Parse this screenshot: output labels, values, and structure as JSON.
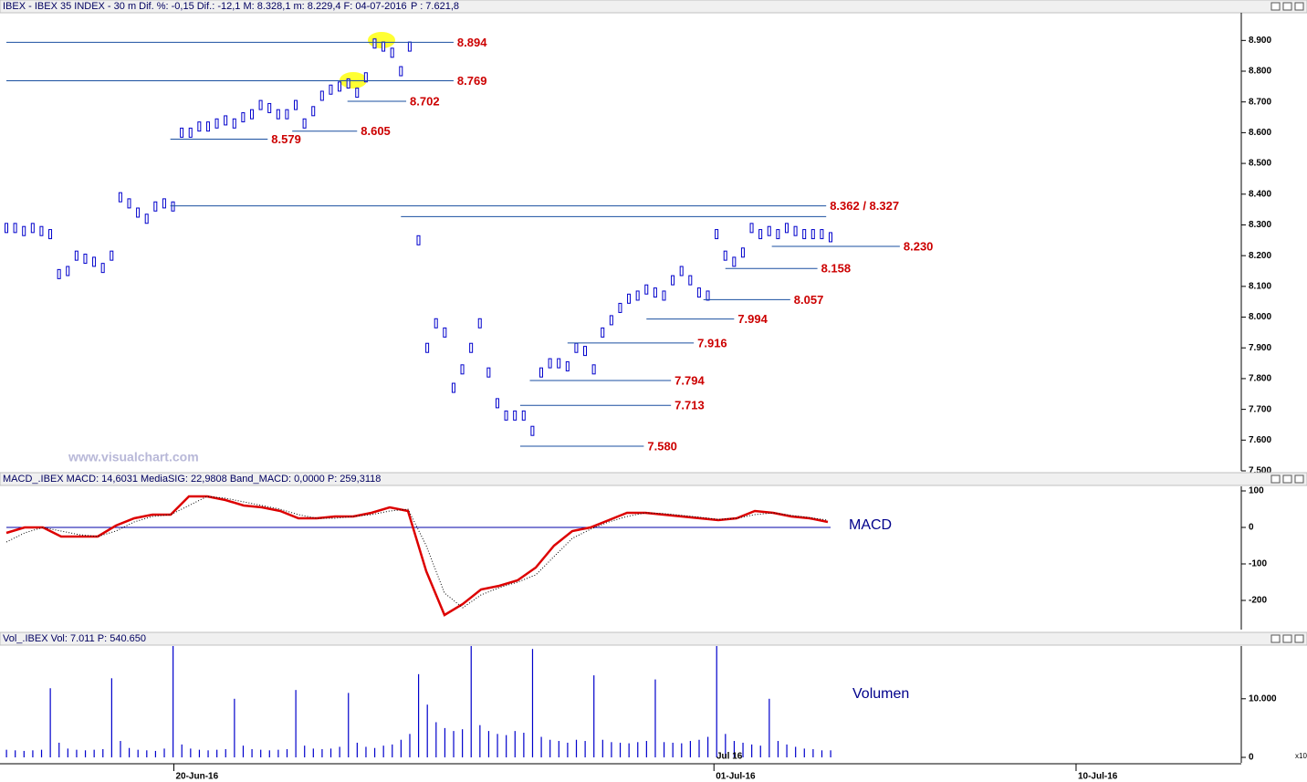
{
  "chart_data": [
    {
      "type": "price",
      "title": "IBEX - IBEX 35 INDEX -  30 m  Dif. %: -0,15  Dif.: -12,1  M: 8.328,1  m: 8.229,4  F: 04-07-2016",
      "last": "P : 7.621,8",
      "watermark": "www.visualchart.com",
      "color": "#0000cc",
      "values": [
        8.29,
        8.29,
        8.28,
        8.29,
        8.28,
        8.27,
        8.14,
        8.15,
        8.2,
        8.19,
        8.18,
        8.16,
        8.2,
        8.39,
        8.37,
        8.34,
        8.32,
        8.36,
        8.37,
        8.36,
        8.6,
        8.6,
        8.62,
        8.62,
        8.63,
        8.64,
        8.63,
        8.65,
        8.66,
        8.69,
        8.68,
        8.66,
        8.66,
        8.69,
        8.63,
        8.67,
        8.72,
        8.74,
        8.75,
        8.76,
        8.73,
        8.78,
        8.89,
        8.88,
        8.86,
        8.8,
        8.88,
        8.25,
        7.9,
        7.98,
        7.95,
        7.77,
        7.83,
        7.9,
        7.98,
        7.82,
        7.72,
        7.68,
        7.68,
        7.68,
        7.63,
        7.82,
        7.85,
        7.85,
        7.84,
        7.9,
        7.89,
        7.83,
        7.95,
        7.99,
        8.03,
        8.06,
        8.07,
        8.09,
        8.08,
        8.07,
        8.12,
        8.15,
        8.12,
        8.08,
        8.07,
        8.27,
        8.2,
        8.18,
        8.21,
        8.29,
        8.27,
        8.28,
        8.27,
        8.29,
        8.28,
        8.27,
        8.27,
        8.27,
        8.26
      ],
      "xlim": [
        0,
        94
      ],
      "xticks": [
        {
          "value": 19.1,
          "label": "20-Jun-16"
        },
        {
          "value": 80.7,
          "label": "01-Jul-16"
        },
        {
          "value": 122,
          "label": "10-Jul-16"
        }
      ],
      "ylim": [
        7.5,
        8.99
      ],
      "yticks": [
        {
          "value": 7.5,
          "label": "7.500"
        },
        {
          "value": 7.6,
          "label": "7.600"
        },
        {
          "value": 7.7,
          "label": "7.700"
        },
        {
          "value": 7.8,
          "label": "7.800"
        },
        {
          "value": 7.9,
          "label": "7.900"
        },
        {
          "value": 8.0,
          "label": "8.000"
        },
        {
          "value": 8.1,
          "label": "8.100"
        },
        {
          "value": 8.2,
          "label": "8.200"
        },
        {
          "value": 8.3,
          "label": "8.300"
        },
        {
          "value": 8.4,
          "label": "8.400"
        },
        {
          "value": 8.5,
          "label": "8.500"
        },
        {
          "value": 8.6,
          "label": "8.600"
        },
        {
          "value": 8.7,
          "label": "8.700"
        },
        {
          "value": 8.8,
          "label": "8.800"
        },
        {
          "value": 8.9,
          "label": "8.900"
        }
      ],
      "levels": [
        {
          "value": 8.894,
          "label": "8.894",
          "from": 0,
          "to": 51
        },
        {
          "value": 8.769,
          "label": "8.769",
          "from": 0,
          "to": 51
        },
        {
          "value": 8.702,
          "label": "8.702",
          "from": 38.9,
          "to": 45.6
        },
        {
          "value": 8.605,
          "label": "8.605",
          "from": 32.6,
          "to": 40
        },
        {
          "value": 8.579,
          "label": "8.579",
          "from": 18.7,
          "to": 29.8
        },
        {
          "value": 8.362,
          "label": "8.362 / 8.327",
          "from": 18.7,
          "to": 93.5
        },
        {
          "value": 8.327,
          "from": 45,
          "to": 93.5
        },
        {
          "value": 8.23,
          "label": "8.230",
          "from": 87.3,
          "to": 101.9
        },
        {
          "value": 8.158,
          "label": "8.158",
          "from": 82,
          "to": 92.5
        },
        {
          "value": 8.057,
          "label": "8.057",
          "from": 79.5,
          "to": 89.4
        },
        {
          "value": 7.994,
          "label": "7.994",
          "from": 73,
          "to": 83
        },
        {
          "value": 7.916,
          "label": "7.916",
          "from": 64,
          "to": 78.4
        },
        {
          "value": 7.794,
          "label": "7.794",
          "from": 59.7,
          "to": 75.8
        },
        {
          "value": 7.713,
          "label": "7.713",
          "from": 58.6,
          "to": 75.8
        },
        {
          "value": 7.58,
          "label": "7.580",
          "from": 58.6,
          "to": 72.7
        }
      ]
    },
    {
      "type": "line",
      "title": "MACD_.IBEX MACD: 14,6031  MediaSIG: 22,9808  Band_MACD: 0,0000  P: 259,3118",
      "label": "MACD",
      "xlim": [
        0,
        45
      ],
      "zero_line": true,
      "series": [
        {
          "color": "#dd0000",
          "style": "solid",
          "values": [
            -15,
            0,
            0,
            -25,
            -25,
            -25,
            5,
            25,
            35,
            35,
            85,
            85,
            75,
            60,
            55,
            45,
            25,
            25,
            30,
            30,
            40,
            55,
            45,
            -120,
            -240,
            -210,
            -170,
            -160,
            -145,
            -110,
            -50,
            -10,
            0,
            20,
            40,
            40,
            35,
            30,
            25,
            20,
            25,
            45,
            40,
            30,
            25,
            15
          ]
        },
        {
          "color": "#000000",
          "style": "dotted",
          "values": [
            -40,
            -15,
            0,
            -10,
            -20,
            -25,
            -10,
            15,
            30,
            35,
            60,
            85,
            80,
            70,
            60,
            50,
            35,
            25,
            25,
            30,
            35,
            45,
            50,
            -50,
            -180,
            -220,
            -185,
            -165,
            -150,
            -130,
            -80,
            -30,
            -5,
            15,
            30,
            40,
            38,
            33,
            28,
            22,
            25,
            35,
            40,
            33,
            27,
            20
          ]
        }
      ],
      "ylim": [
        -280,
        112.5
      ],
      "yticks": [
        100,
        0,
        -100,
        -200
      ]
    },
    {
      "type": "bar",
      "title": "Vol_.IBEX Vol: 7.011  P: 540.650",
      "label": "Volumen",
      "month_label": "Jul 16",
      "scale_note": "x10",
      "color": "#0000cc",
      "xlim": [
        0,
        94
      ],
      "values": [
        1300,
        1200,
        1100,
        1200,
        1300,
        11800,
        2500,
        1500,
        1300,
        1200,
        1300,
        1400,
        13500,
        2800,
        1600,
        1300,
        1200,
        1100,
        1500,
        19000,
        2200,
        1500,
        1300,
        1200,
        1300,
        1400,
        10000,
        2000,
        1400,
        1300,
        1200,
        1300,
        1400,
        11500,
        2000,
        1500,
        1400,
        1500,
        1800,
        11000,
        2500,
        1800,
        1600,
        2000,
        2200,
        3000,
        4000,
        14200,
        9000,
        6000,
        5000,
        4500,
        4800,
        19000,
        5500,
        4500,
        4000,
        3800,
        4500,
        4200,
        18500,
        3500,
        3000,
        2800,
        2500,
        3000,
        2800,
        14000,
        3000,
        2600,
        2500,
        2400,
        2600,
        2800,
        13300,
        2600,
        2500,
        2400,
        2800,
        3000,
        3500,
        19000,
        4000,
        2800,
        2500,
        2200,
        2000,
        10000,
        2800,
        2200,
        1800,
        1500,
        1400,
        1200,
        1200
      ],
      "ylim": [
        0,
        19000
      ],
      "yticks": [
        0,
        {
          "value": 10000,
          "label": "10.000"
        }
      ]
    }
  ]
}
